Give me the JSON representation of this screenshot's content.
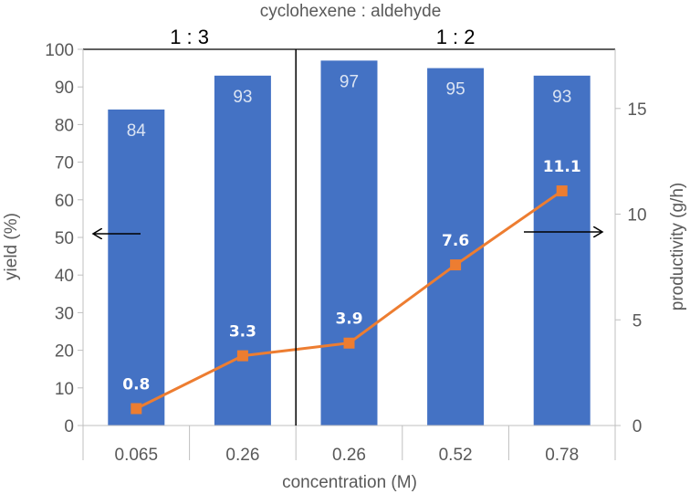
{
  "chart_data": {
    "type": "bar",
    "title": "cyclohexene : aldehyde",
    "xlabel": "concentration (M)",
    "ylabel": "yield (%)",
    "y2label": "productivity (g/h)",
    "categories": [
      "0.065",
      "0.26",
      "0.26",
      "0.52",
      "0.78"
    ],
    "ylim": [
      0,
      100
    ],
    "yticks": [
      0,
      10,
      20,
      30,
      40,
      50,
      60,
      70,
      80,
      90,
      100
    ],
    "y2lim": [
      0,
      17.8
    ],
    "y2ticks": [
      0,
      5,
      10,
      15
    ],
    "groups": [
      {
        "label": "1 : 3",
        "from": 0,
        "to": 1
      },
      {
        "label": "1 : 2",
        "from": 2,
        "to": 4
      }
    ],
    "series": [
      {
        "name": "yield (%)",
        "type": "bar",
        "axis": "left",
        "color": "#4472c4",
        "values": [
          84,
          93,
          97,
          95,
          93
        ],
        "labels": [
          "84",
          "93",
          "97",
          "95",
          "93"
        ]
      },
      {
        "name": "productivity (g/h)",
        "type": "line",
        "axis": "right",
        "color": "#ed7d31",
        "values": [
          0.8,
          3.3,
          3.9,
          7.6,
          11.1
        ],
        "labels": [
          "0.8",
          "3.3",
          "3.9",
          "7.6",
          "11.1"
        ]
      }
    ],
    "annotations": [
      {
        "type": "arrow",
        "direction": "left",
        "points_to": "left axis"
      },
      {
        "type": "arrow",
        "direction": "right",
        "points_to": "right axis"
      }
    ]
  }
}
